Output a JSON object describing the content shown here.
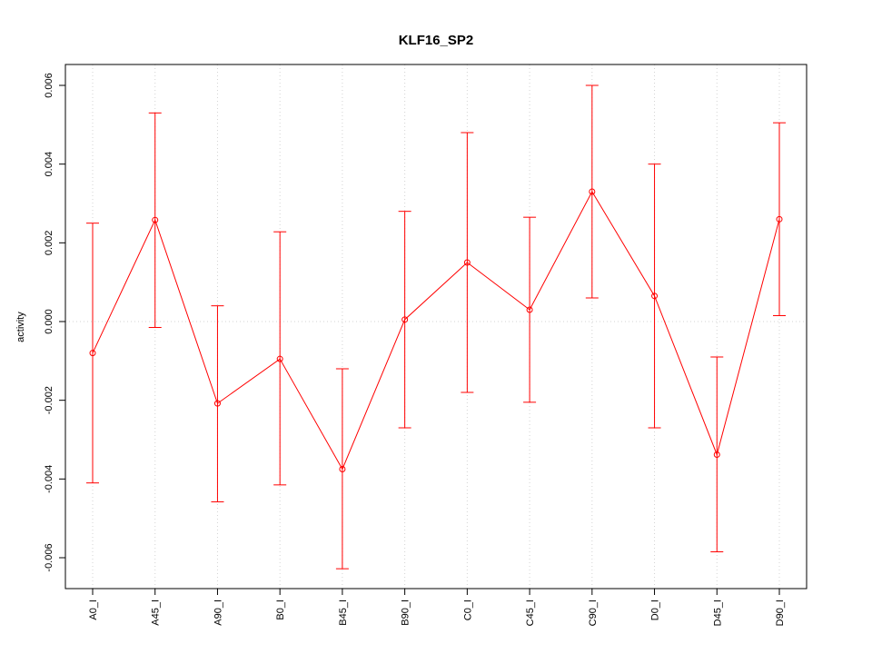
{
  "chart_data": {
    "type": "line",
    "title": "KLF16_SP2",
    "xlabel": "",
    "ylabel": "activity",
    "categories": [
      "A0_I",
      "A45_I",
      "A90_I",
      "B0_I",
      "B45_I",
      "B90_I",
      "C0_I",
      "C45_I",
      "C90_I",
      "D0_I",
      "D45_I",
      "D90_I"
    ],
    "series": [
      {
        "values": [
          -0.0008,
          0.00258,
          -0.00208,
          -0.00095,
          -0.00375,
          5e-05,
          0.0015,
          0.0003,
          0.0033,
          0.00065,
          -0.00338,
          0.0026
        ],
        "lower": [
          -0.0041,
          -0.00015,
          -0.00458,
          -0.00415,
          -0.00628,
          -0.0027,
          -0.0018,
          -0.00205,
          0.0006,
          -0.0027,
          -0.00585,
          0.00015
        ],
        "upper": [
          0.0025,
          0.0053,
          0.0004,
          0.00228,
          -0.0012,
          0.0028,
          0.0048,
          0.00265,
          0.006,
          0.004,
          -0.0009,
          0.00505
        ]
      }
    ],
    "yticks": [
      -0.006,
      -0.004,
      -0.002,
      0.0,
      0.002,
      0.004,
      0.006
    ],
    "ytick_labels": [
      "-0.006",
      "-0.004",
      "-0.002",
      "0.000",
      "0.002",
      "0.004",
      "0.006"
    ],
    "ylim": [
      -0.0068,
      0.0065
    ],
    "grid": true,
    "colors": {
      "series": "#ff0000",
      "grid": "#d3d3d3",
      "frame": "#000000"
    }
  }
}
